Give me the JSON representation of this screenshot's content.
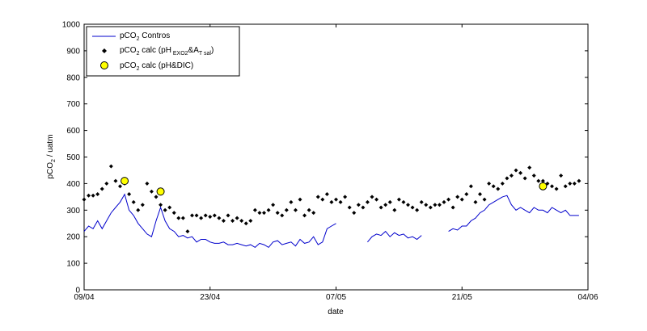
{
  "chart_data": {
    "type": "line",
    "title": "",
    "xlabel": "date",
    "ylabel": "pCO2 / uatm",
    "ylabel_parts": {
      "pre": "pCO",
      "sub": "2",
      "post": " / uatm"
    },
    "xlim": [
      "2014-04-09",
      "2014-06-04"
    ],
    "ylim": [
      0,
      1000
    ],
    "x_ticks": [
      {
        "label": "09/04",
        "date": "2014-04-09"
      },
      {
        "label": "23/04",
        "date": "2014-04-23"
      },
      {
        "label": "07/05",
        "date": "2014-05-07"
      },
      {
        "label": "21/05",
        "date": "2014-05-21"
      },
      {
        "label": "04/06",
        "date": "2014-06-04"
      }
    ],
    "y_ticks": [
      0,
      100,
      200,
      300,
      400,
      500,
      600,
      700,
      800,
      900,
      1000
    ],
    "grid": false,
    "legend_position": "top-left",
    "colors": {
      "contros": "#0000cc",
      "exo2": "#000000",
      "dic_fill": "#ffff00",
      "dic_edge": "#000000"
    },
    "legend": [
      {
        "text": "pCO",
        "sub": "2",
        "post": " Contros"
      },
      {
        "text": "pCO",
        "sub": "2",
        "post": " calc (pH",
        "sub2": " EXO2",
        "post2": "&A",
        "sub3": "T sal",
        "post3": ")"
      },
      {
        "text": "pCO",
        "sub": "2",
        "post": " calc (pH&DIC)"
      }
    ],
    "series": [
      {
        "name": "pCO2 Contros",
        "style": "line",
        "segments": [
          {
            "x": [
              "2014-04-09T00:00",
              "2014-04-09T12:00",
              "2014-04-10T00:00",
              "2014-04-10T12:00",
              "2014-04-11T00:00",
              "2014-04-11T12:00",
              "2014-04-12T00:00",
              "2014-04-12T12:00",
              "2014-04-13T00:00",
              "2014-04-13T12:00",
              "2014-04-14T00:00",
              "2014-04-14T12:00",
              "2014-04-15T00:00",
              "2014-04-15T12:00",
              "2014-04-16T00:00",
              "2014-04-16T12:00",
              "2014-04-17T00:00",
              "2014-04-17T12:00",
              "2014-04-18T00:00",
              "2014-04-18T12:00",
              "2014-04-19T00:00",
              "2014-04-19T12:00",
              "2014-04-20T00:00",
              "2014-04-20T12:00",
              "2014-04-21T00:00",
              "2014-04-21T12:00",
              "2014-04-22T00:00",
              "2014-04-22T12:00",
              "2014-04-23T00:00",
              "2014-04-23T12:00",
              "2014-04-24T00:00",
              "2014-04-24T12:00",
              "2014-04-25T00:00",
              "2014-04-25T12:00",
              "2014-04-26T00:00",
              "2014-04-26T12:00",
              "2014-04-27T00:00",
              "2014-04-27T12:00",
              "2014-04-28T00:00",
              "2014-04-28T12:00",
              "2014-04-29T00:00",
              "2014-04-29T12:00",
              "2014-04-30T00:00",
              "2014-04-30T12:00",
              "2014-05-01T00:00",
              "2014-05-01T12:00",
              "2014-05-02T00:00",
              "2014-05-02T12:00",
              "2014-05-03T00:00",
              "2014-05-03T12:00",
              "2014-05-04T00:00",
              "2014-05-04T12:00",
              "2014-05-05T00:00",
              "2014-05-05T12:00",
              "2014-05-06T00:00",
              "2014-05-06T12:00",
              "2014-05-07T00:00"
            ],
            "y": [
              220,
              240,
              230,
              260,
              230,
              260,
              290,
              310,
              330,
              360,
              300,
              280,
              250,
              230,
              210,
              200,
              260,
              310,
              260,
              230,
              220,
              200,
              205,
              195,
              200,
              180,
              190,
              190,
              180,
              175,
              175,
              180,
              170,
              170,
              175,
              170,
              165,
              170,
              160,
              175,
              170,
              160,
              180,
              185,
              170,
              175,
              180,
              165,
              190,
              175,
              180,
              200,
              170,
              180,
              230,
              240,
              250
            ]
          },
          {
            "x": [
              "2014-05-10T12:00",
              "2014-05-11T00:00",
              "2014-05-11T12:00",
              "2014-05-12T00:00",
              "2014-05-12T12:00",
              "2014-05-13T00:00",
              "2014-05-13T12:00",
              "2014-05-14T00:00",
              "2014-05-14T12:00",
              "2014-05-15T00:00",
              "2014-05-15T12:00",
              "2014-05-16T00:00",
              "2014-05-16T12:00"
            ],
            "y": [
              180,
              200,
              210,
              205,
              220,
              200,
              215,
              205,
              210,
              195,
              200,
              190,
              205
            ]
          },
          {
            "x": [
              "2014-05-19T12:00",
              "2014-05-20T00:00",
              "2014-05-20T12:00",
              "2014-05-21T00:00",
              "2014-05-21T12:00",
              "2014-05-22T00:00",
              "2014-05-22T12:00",
              "2014-05-23T00:00",
              "2014-05-23T12:00",
              "2014-05-24T00:00",
              "2014-05-24T12:00",
              "2014-05-25T00:00",
              "2014-05-25T12:00",
              "2014-05-26T00:00",
              "2014-05-26T12:00",
              "2014-05-27T00:00",
              "2014-05-27T12:00",
              "2014-05-28T00:00",
              "2014-05-28T12:00",
              "2014-05-29T00:00",
              "2014-05-29T12:00",
              "2014-05-30T00:00",
              "2014-05-30T12:00",
              "2014-05-31T00:00",
              "2014-05-31T12:00",
              "2014-06-01T00:00",
              "2014-06-01T12:00",
              "2014-06-02T00:00",
              "2014-06-02T12:00",
              "2014-06-03T00:00"
            ],
            "y": [
              220,
              230,
              225,
              240,
              240,
              260,
              270,
              290,
              300,
              320,
              330,
              340,
              350,
              355,
              320,
              300,
              310,
              300,
              290,
              310,
              300,
              300,
              290,
              310,
              300,
              290,
              300,
              280,
              280,
              280
            ]
          }
        ]
      },
      {
        "name": "pCO2 calc (pH EXO2&A T sal)",
        "style": "diamond",
        "x": [
          "2014-04-09",
          "2014-04-09T12:00",
          "2014-04-10",
          "2014-04-10T12:00",
          "2014-04-11",
          "2014-04-11T12:00",
          "2014-04-12",
          "2014-04-12T12:00",
          "2014-04-13",
          "2014-04-13T12:00",
          "2014-04-14",
          "2014-04-14T12:00",
          "2014-04-15",
          "2014-04-15T12:00",
          "2014-04-16",
          "2014-04-16T12:00",
          "2014-04-17",
          "2014-04-17T12:00",
          "2014-04-18",
          "2014-04-18T12:00",
          "2014-04-19",
          "2014-04-19T12:00",
          "2014-04-20",
          "2014-04-20T12:00",
          "2014-04-21",
          "2014-04-21T12:00",
          "2014-04-22",
          "2014-04-22T12:00",
          "2014-04-23",
          "2014-04-23T12:00",
          "2014-04-24",
          "2014-04-24T12:00",
          "2014-04-25",
          "2014-04-25T12:00",
          "2014-04-26",
          "2014-04-26T12:00",
          "2014-04-27",
          "2014-04-27T12:00",
          "2014-04-28",
          "2014-04-28T12:00",
          "2014-04-29",
          "2014-04-29T12:00",
          "2014-04-30",
          "2014-04-30T12:00",
          "2014-05-01",
          "2014-05-01T12:00",
          "2014-05-02",
          "2014-05-02T12:00",
          "2014-05-03",
          "2014-05-03T12:00",
          "2014-05-04",
          "2014-05-04T12:00",
          "2014-05-05",
          "2014-05-05T12:00",
          "2014-05-06",
          "2014-05-06T12:00",
          "2014-05-07",
          "2014-05-07T12:00",
          "2014-05-08",
          "2014-05-08T12:00",
          "2014-05-09",
          "2014-05-09T12:00",
          "2014-05-10",
          "2014-05-10T12:00",
          "2014-05-11",
          "2014-05-11T12:00",
          "2014-05-12",
          "2014-05-12T12:00",
          "2014-05-13",
          "2014-05-13T12:00",
          "2014-05-14",
          "2014-05-14T12:00",
          "2014-05-15",
          "2014-05-15T12:00",
          "2014-05-16",
          "2014-05-16T12:00",
          "2014-05-17",
          "2014-05-17T12:00",
          "2014-05-18",
          "2014-05-18T12:00",
          "2014-05-19",
          "2014-05-19T12:00",
          "2014-05-20",
          "2014-05-20T12:00",
          "2014-05-21",
          "2014-05-21T12:00",
          "2014-05-22",
          "2014-05-22T12:00",
          "2014-05-23",
          "2014-05-23T12:00",
          "2014-05-24",
          "2014-05-24T12:00",
          "2014-05-25",
          "2014-05-25T12:00",
          "2014-05-26",
          "2014-05-26T12:00",
          "2014-05-27",
          "2014-05-27T12:00",
          "2014-05-28",
          "2014-05-28T12:00",
          "2014-05-29",
          "2014-05-29T12:00",
          "2014-05-30",
          "2014-05-30T12:00",
          "2014-05-31",
          "2014-05-31T12:00",
          "2014-06-01",
          "2014-06-01T12:00",
          "2014-06-02",
          "2014-06-02T12:00",
          "2014-06-03"
        ],
        "y": [
          340,
          355,
          355,
          360,
          380,
          400,
          465,
          410,
          390,
          400,
          360,
          330,
          300,
          320,
          400,
          370,
          350,
          320,
          300,
          310,
          290,
          270,
          270,
          220,
          280,
          280,
          270,
          280,
          275,
          280,
          270,
          260,
          280,
          260,
          270,
          260,
          250,
          260,
          300,
          290,
          290,
          300,
          320,
          290,
          280,
          300,
          330,
          300,
          340,
          280,
          300,
          290,
          350,
          340,
          360,
          330,
          340,
          330,
          350,
          310,
          290,
          320,
          310,
          330,
          350,
          340,
          310,
          320,
          330,
          300,
          340,
          330,
          320,
          310,
          300,
          330,
          320,
          310,
          320,
          320,
          330,
          340,
          310,
          350,
          340,
          360,
          390,
          330,
          360,
          340,
          400,
          390,
          380,
          400,
          420,
          430,
          450,
          440,
          420,
          460,
          430,
          410,
          410,
          400,
          390,
          380,
          430,
          390,
          400,
          400,
          410
        ]
      },
      {
        "name": "pCO2 calc (pH&DIC)",
        "style": "circle",
        "x": [
          "2014-04-13T12:00",
          "2014-04-17T12:00",
          "2014-05-30"
        ],
        "y": [
          410,
          370,
          390
        ]
      }
    ]
  }
}
